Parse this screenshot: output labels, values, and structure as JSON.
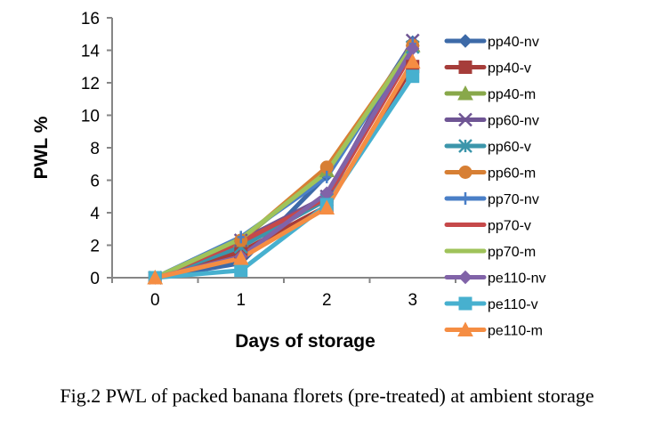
{
  "chart_data": {
    "type": "line",
    "title": "",
    "xlabel": "Days of storage",
    "ylabel": "PWL %",
    "categories": [
      "0",
      "1",
      "2",
      "3"
    ],
    "ylim": [
      0,
      16
    ],
    "yticks": [
      "0",
      "2",
      "4",
      "6",
      "8",
      "10",
      "12",
      "14",
      "16"
    ],
    "grid": false,
    "legend_position": "right",
    "series": [
      {
        "name": "pp40-nv",
        "color": "#3d6aa8",
        "marker": "diamond",
        "values": [
          0,
          0.9,
          6.3,
          14.5
        ]
      },
      {
        "name": "pp40-v",
        "color": "#a63d3a",
        "marker": "square",
        "values": [
          0,
          1.6,
          4.4,
          13.0
        ]
      },
      {
        "name": "pp40-m",
        "color": "#88a84a",
        "marker": "triangle",
        "values": [
          0,
          2.3,
          6.6,
          14.3
        ]
      },
      {
        "name": "pp60-nv",
        "color": "#6f5594",
        "marker": "x",
        "values": [
          0,
          2.3,
          5.0,
          14.6
        ]
      },
      {
        "name": "pp60-v",
        "color": "#3c96ab",
        "marker": "star",
        "values": [
          0,
          1.9,
          4.8,
          14.2
        ]
      },
      {
        "name": "pp60-m",
        "color": "#d77f34",
        "marker": "circle",
        "values": [
          0,
          2.3,
          6.8,
          14.3
        ]
      },
      {
        "name": "pp70-nv",
        "color": "#4a7fc7",
        "marker": "plus",
        "values": [
          0,
          2.5,
          6.2,
          14.4
        ]
      },
      {
        "name": "pp70-v",
        "color": "#c6494a",
        "marker": "none",
        "values": [
          0,
          2.2,
          4.9,
          13.9
        ]
      },
      {
        "name": "pp70-m",
        "color": "#9fc35a",
        "marker": "none",
        "values": [
          0,
          2.4,
          6.5,
          14.3
        ]
      },
      {
        "name": "pe110-nv",
        "color": "#8163a8",
        "marker": "diamond",
        "values": [
          0,
          1.3,
          5.2,
          14.1
        ]
      },
      {
        "name": "pe110-v",
        "color": "#47b0cf",
        "marker": "square",
        "values": [
          0,
          0.45,
          4.5,
          12.4
        ]
      },
      {
        "name": "pe110-m",
        "color": "#f58d43",
        "marker": "triangle",
        "values": [
          0,
          1.2,
          4.3,
          13.3
        ]
      }
    ]
  },
  "caption": "Fig.2 PWL of packed banana florets (pre-treated) at ambient storage"
}
